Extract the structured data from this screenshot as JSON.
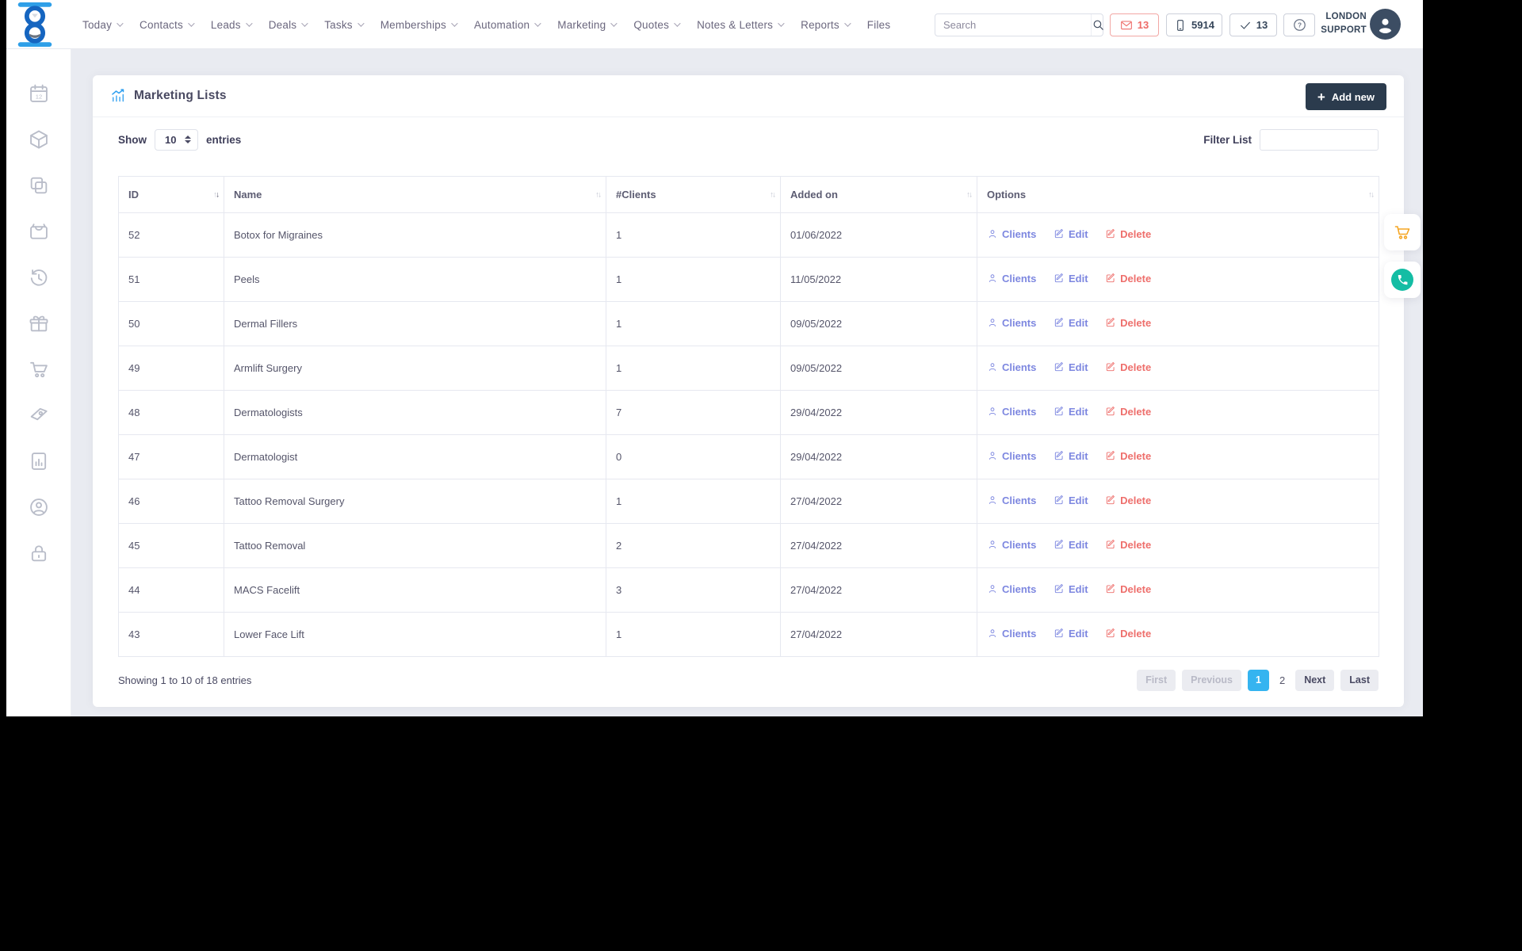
{
  "nav": {
    "items": [
      {
        "label": "Today",
        "has_dropdown": true
      },
      {
        "label": "Contacts",
        "has_dropdown": true
      },
      {
        "label": "Leads",
        "has_dropdown": true
      },
      {
        "label": "Deals",
        "has_dropdown": true
      },
      {
        "label": "Tasks",
        "has_dropdown": true
      },
      {
        "label": "Memberships",
        "has_dropdown": true
      },
      {
        "label": "Automation",
        "has_dropdown": true
      },
      {
        "label": "Marketing",
        "has_dropdown": true
      },
      {
        "label": "Quotes",
        "has_dropdown": true
      },
      {
        "label": "Notes & Letters",
        "has_dropdown": true
      },
      {
        "label": "Reports",
        "has_dropdown": true
      },
      {
        "label": "Files",
        "has_dropdown": false
      }
    ],
    "search_placeholder": "Search",
    "badges": {
      "messages": "13",
      "phone": "5914",
      "tasks": "13",
      "help": "?"
    },
    "user": {
      "line1": "LONDON",
      "line2": "SUPPORT"
    }
  },
  "sidebar": {
    "icons": [
      "calendar",
      "package",
      "copy",
      "cash-register",
      "history",
      "gift",
      "cart",
      "sales-tag",
      "report",
      "user-circle",
      "lock"
    ]
  },
  "page": {
    "title": "Marketing Lists",
    "add_label": "Add new",
    "show_label": "Show",
    "entries_label": "entries",
    "page_size": "10",
    "filter_label": "Filter List",
    "filter_value": ""
  },
  "table": {
    "columns": [
      "ID",
      "Name",
      "#Clients",
      "Added on",
      "Options"
    ],
    "sort": {
      "column": "ID",
      "direction": "desc"
    },
    "actions": {
      "clients": "Clients",
      "edit": "Edit",
      "delete": "Delete"
    },
    "rows": [
      {
        "id": "52",
        "name": "Botox for Migraines",
        "clients": "1",
        "added": "01/06/2022"
      },
      {
        "id": "51",
        "name": "Peels",
        "clients": "1",
        "added": "11/05/2022"
      },
      {
        "id": "50",
        "name": "Dermal Fillers",
        "clients": "1",
        "added": "09/05/2022"
      },
      {
        "id": "49",
        "name": "Armlift Surgery",
        "clients": "1",
        "added": "09/05/2022"
      },
      {
        "id": "48",
        "name": "Dermatologists",
        "clients": "7",
        "added": "29/04/2022"
      },
      {
        "id": "47",
        "name": "Dermatologist",
        "clients": "0",
        "added": "29/04/2022"
      },
      {
        "id": "46",
        "name": "Tattoo Removal Surgery",
        "clients": "1",
        "added": "27/04/2022"
      },
      {
        "id": "45",
        "name": "Tattoo Removal",
        "clients": "2",
        "added": "27/04/2022"
      },
      {
        "id": "44",
        "name": "MACS Facelift",
        "clients": "3",
        "added": "27/04/2022"
      },
      {
        "id": "43",
        "name": "Lower Face Lift",
        "clients": "1",
        "added": "27/04/2022"
      }
    ]
  },
  "footer": {
    "summary": "Showing 1 to 10 of 18 entries",
    "pagination": {
      "first": "First",
      "previous": "Previous",
      "pages": [
        "1",
        "2"
      ],
      "active": "1",
      "next": "Next",
      "last": "Last"
    }
  },
  "colors": {
    "accent_blue": "#35b4f0",
    "brand_blue_light": "#2e9fe8",
    "brand_blue_dark": "#1565c0",
    "link_indigo": "#7d87e0",
    "danger_red": "#ee6f6c",
    "dark_navy": "#2b3b4d",
    "cart_orange": "#f5a623",
    "phone_teal": "#14bda4"
  }
}
